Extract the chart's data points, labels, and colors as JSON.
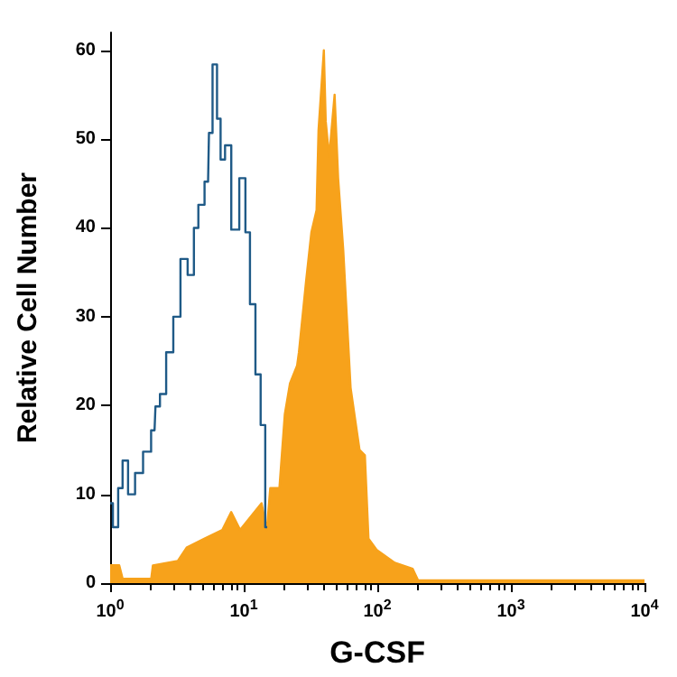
{
  "chart_data": {
    "type": "step",
    "xlabel": "G-CSF",
    "ylabel": "Relative Cell Number",
    "log": "x",
    "grid": false,
    "marker": "none",
    "xlim": [
      1,
      10000
    ],
    "xticks": [
      {
        "value": 1,
        "label": "10$^{0}$"
      },
      {
        "value": 10,
        "label": "10$^{1}$"
      },
      {
        "value": 100,
        "label": "10$^{2}$"
      },
      {
        "value": 1000,
        "label": "10$^{3}$"
      },
      {
        "value": 10000,
        "label": "10$^{4}$"
      }
    ],
    "ylim": [
      0,
      62
    ],
    "yticks": [
      0,
      10,
      20,
      30,
      40,
      50,
      60
    ],
    "series": [
      {
        "type": "area",
        "color": "#f7a21b",
        "x": [
          1.0,
          1.17,
          1.24,
          2.03,
          2.09,
          3.21,
          3.74,
          5.06,
          6.92,
          8.06,
          9.4,
          13.6,
          14.9,
          15.8,
          18.5,
          20.3,
          22.2,
          25.1,
          25.9,
          29.3,
          32.1,
          35.1,
          36.3,
          39.8,
          41.1,
          43.6,
          47.9,
          50.9,
          55.6,
          63.1,
          73.6,
          80.7,
          85.9,
          99.5,
          135,
          184,
          202,
          10000
        ],
        "values": [
          2,
          2,
          0.5,
          0.5,
          2,
          2.5,
          4,
          5,
          6,
          8,
          6,
          9,
          6,
          10.7,
          10.7,
          19,
          22.5,
          24.5,
          26,
          34,
          39.5,
          42,
          51,
          60,
          52,
          48,
          55,
          45.6,
          37.5,
          22,
          15,
          14.4,
          5,
          3.7,
          2.3,
          1.6,
          0.3,
          0.3
        ]
      },
      {
        "color": "#1f5a87",
        "x": [
          1.0,
          1.1,
          1.2,
          1.28,
          1.45,
          1.63,
          1.91,
          2.15,
          2.22,
          2.51,
          2.75,
          3.21,
          3.52,
          4.11,
          4.37,
          4.79,
          5.41,
          5.58,
          6.12,
          6.51,
          6.92,
          7.59,
          8.58,
          10.0,
          10.6,
          11.7,
          12.8,
          14.0,
          15.0
        ],
        "values": [
          9,
          6.3,
          10.7,
          13.8,
          10,
          12.4,
          14.8,
          17.2,
          19.9,
          21.3,
          26,
          30,
          36.5,
          34.7,
          40,
          42.6,
          45.2,
          50.7,
          58.4,
          52.3,
          47.7,
          49.3,
          39.8,
          45.6,
          39.5,
          31.4,
          23.5,
          17.8,
          6.3
        ]
      }
    ]
  }
}
